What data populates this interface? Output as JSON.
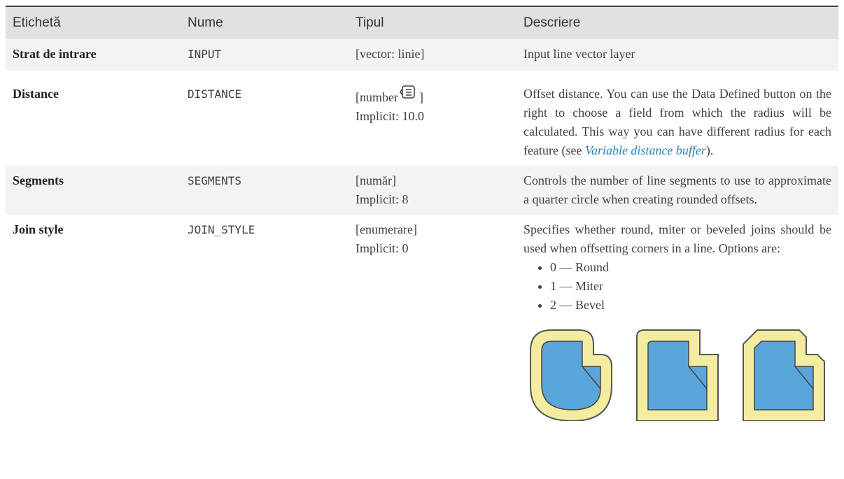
{
  "table": {
    "header": [
      "Etichetă",
      "Nume",
      "Tipul",
      "Descriere"
    ],
    "rows": [
      {
        "label": "Strat de intrare",
        "name": "INPUT",
        "type": [
          "[vector: linie]"
        ],
        "description": "Input line vector layer"
      },
      {
        "label": "Distance",
        "name": "DISTANCE",
        "type": [
          "[number",
          "]",
          "Implicit: 10.0"
        ],
        "description": {
          "before": "Offset distance.  You can use the Data Defined button on the right to choose a field from which the radius will be calculated. This way you can have different radius for each feature (see ",
          "link": "Variable distance buffer",
          "after": ")."
        }
      },
      {
        "label": "Segments",
        "name": "SEGMENTS",
        "type": [
          "[număr]",
          "Implicit: 8"
        ],
        "description": "Controls the number of line segments to use to approximate a quarter circle when creating rounded offsets."
      },
      {
        "label": "Join style",
        "name": "JOIN_STYLE",
        "type": [
          "[enumerare]",
          "Implicit: 0"
        ],
        "description": {
          "text": "Specifies whether round, miter or beveled joins should be used when offsetting corners in a line. Options are:",
          "options": [
            "0 — Round",
            "1 — Miter",
            "2 — Bevel"
          ]
        }
      }
    ]
  }
}
